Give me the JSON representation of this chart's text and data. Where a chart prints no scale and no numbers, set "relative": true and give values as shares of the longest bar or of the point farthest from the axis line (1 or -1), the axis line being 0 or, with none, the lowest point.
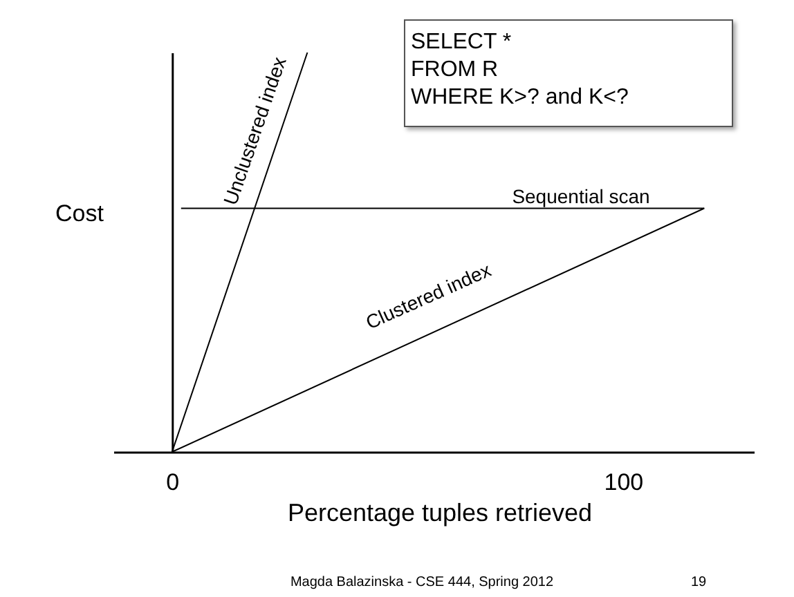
{
  "chart_data": {
    "type": "line",
    "relative": true,
    "xlabel": "Percentage tuples retrieved",
    "ylabel": "Cost",
    "xlim": [
      -13,
      129
    ],
    "xticks": [
      0,
      100
    ],
    "legend": false,
    "grid": false,
    "series": [
      {
        "name": "Unclustered index",
        "color": "#000000",
        "x": [
          0,
          30
        ],
        "values": [
          0,
          1
        ]
      },
      {
        "name": "Sequential scan",
        "color": "#000000",
        "x": [
          2,
          118
        ],
        "values": [
          0.61,
          0.61
        ]
      },
      {
        "name": "Clustered index",
        "color": "#000000",
        "x": [
          0,
          118
        ],
        "values": [
          0,
          0.61
        ]
      }
    ],
    "annotations": [
      "SELECT *\nFROM R\nWHERE K>? and K<?",
      "Magda Balazinska - CSE 444, Spring 2012",
      "19"
    ]
  }
}
